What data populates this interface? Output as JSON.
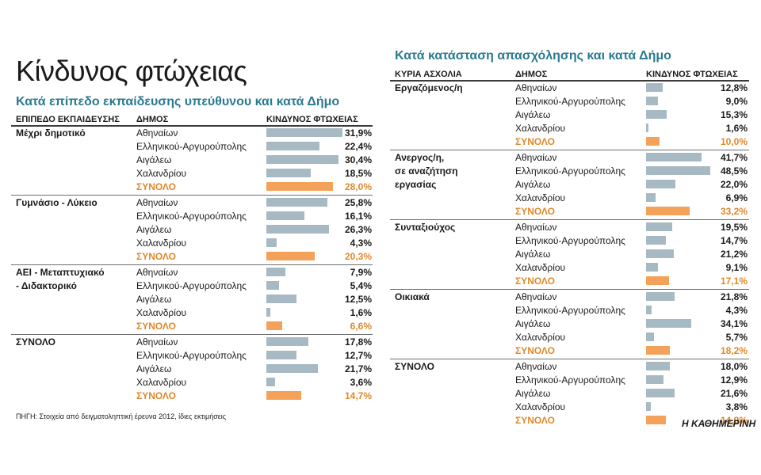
{
  "page_title": "Κίνδυνος φτώχειας",
  "source": "ΠΗΓΗ: Στοιχεία από δειγματοληπτική έρευνα 2012, ίδιες εκτιμήσεις",
  "brand": "Η ΚΑΘΗΜΕΡΙΝΗ",
  "colors": {
    "bar": "#a7bac4",
    "total_bar": "#f4a25a",
    "total_text": "#e0882a",
    "subtitle": "#2a7a8f"
  },
  "chart_data": [
    {
      "type": "bar",
      "title": "Κατά επίπεδο εκπαίδευσης υπεύθυνου και κατά Δήμο",
      "headers": {
        "category": "ΕΠΙΠΕΔΟ ΕΚΠΑΙΔΕΥΣΗΣ",
        "municipality": "ΔΗΜΟΣ",
        "value": "ΚΙΝΔΥΝΟΣ ΦΤΩΧΕΙΑΣ"
      },
      "value_suffix": "%",
      "xlim": [
        0,
        32
      ],
      "groups": [
        {
          "category_lines": [
            "Μέχρι δημοτικό"
          ],
          "rows": [
            {
              "label": "Αθηναίων",
              "value": "31,9",
              "total": false
            },
            {
              "label": "Ελληνικού-Αργυρούπολης",
              "value": "22,4",
              "total": false
            },
            {
              "label": "Αιγάλεω",
              "value": "30,4",
              "total": false
            },
            {
              "label": "Χαλανδρίου",
              "value": "18,5",
              "total": false
            },
            {
              "label": "ΣΥΝΟΛΟ",
              "value": "28,0",
              "total": true
            }
          ]
        },
        {
          "category_lines": [
            "Γυμνάσιο - Λύκειο"
          ],
          "rows": [
            {
              "label": "Αθηναίων",
              "value": "25,8",
              "total": false
            },
            {
              "label": "Ελληνικού-Αργυρούπολης",
              "value": "16,1",
              "total": false
            },
            {
              "label": "Αιγάλεω",
              "value": "26,3",
              "total": false
            },
            {
              "label": "Χαλανδρίου",
              "value": "4,3",
              "total": false
            },
            {
              "label": "ΣΥΝΟΛΟ",
              "value": "20,3",
              "total": true
            }
          ]
        },
        {
          "category_lines": [
            "ΑΕΙ - Μεταπτυχιακό",
            "- Διδακτορικό"
          ],
          "rows": [
            {
              "label": "Αθηναίων",
              "value": "7,9",
              "total": false
            },
            {
              "label": "Ελληνικού-Αργυρούπολης",
              "value": "5,4",
              "total": false
            },
            {
              "label": "Αιγάλεω",
              "value": "12,5",
              "total": false
            },
            {
              "label": "Χαλανδρίου",
              "value": "1,6",
              "total": false
            },
            {
              "label": "ΣΥΝΟΛΟ",
              "value": "6,6",
              "total": true
            }
          ]
        },
        {
          "category_lines": [
            "ΣΥΝΟΛΟ"
          ],
          "rows": [
            {
              "label": "Αθηναίων",
              "value": "17,8",
              "total": false
            },
            {
              "label": "Ελληνικού-Αργυρούπολης",
              "value": "12,7",
              "total": false
            },
            {
              "label": "Αιγάλεω",
              "value": "21,7",
              "total": false
            },
            {
              "label": "Χαλανδρίου",
              "value": "3,6",
              "total": false
            },
            {
              "label": "ΣΥΝΟΛΟ",
              "value": "14,7",
              "total": true
            }
          ]
        }
      ]
    },
    {
      "type": "bar",
      "title": "Κατά κατάσταση απασχόλησης και κατά Δήμο",
      "headers": {
        "category": "ΚΥΡΙΑ ΑΣΧΟΛΙΑ",
        "municipality": "ΔΗΜΟΣ",
        "value": "ΚΙΝΔΥΝΟΣ ΦΤΩΧΕΙΑΣ"
      },
      "value_suffix": "%",
      "xlim": [
        0,
        48.5
      ],
      "groups": [
        {
          "category_lines": [
            "Εργαζόμενος/η"
          ],
          "rows": [
            {
              "label": "Αθηναίων",
              "value": "12,8",
              "total": false
            },
            {
              "label": "Ελληνικού-Αργυρούπολης",
              "value": "9,0",
              "total": false
            },
            {
              "label": "Αιγάλεω",
              "value": "15,3",
              "total": false
            },
            {
              "label": "Χαλανδρίου",
              "value": "1,6",
              "total": false
            },
            {
              "label": "ΣΥΝΟΛΟ",
              "value": "10,0",
              "total": true
            }
          ]
        },
        {
          "category_lines": [
            "Ανεργος/η,",
            "σε αναζήτηση",
            "εργασίας"
          ],
          "rows": [
            {
              "label": "Αθηναίων",
              "value": "41,7",
              "total": false
            },
            {
              "label": "Ελληνικού-Αργυρούπολης",
              "value": "48,5",
              "total": false
            },
            {
              "label": "Αιγάλεω",
              "value": "22,0",
              "total": false
            },
            {
              "label": "Χαλανδρίου",
              "value": "6,9",
              "total": false
            },
            {
              "label": "ΣΥΝΟΛΟ",
              "value": "33,2",
              "total": true
            }
          ]
        },
        {
          "category_lines": [
            "Συνταξιούχος"
          ],
          "rows": [
            {
              "label": "Αθηναίων",
              "value": "19,5",
              "total": false
            },
            {
              "label": "Ελληνικού-Αργυρούπολης",
              "value": "14,7",
              "total": false
            },
            {
              "label": "Αιγάλεω",
              "value": "21,2",
              "total": false
            },
            {
              "label": "Χαλανδρίου",
              "value": "9,1",
              "total": false
            },
            {
              "label": "ΣΥΝΟΛΟ",
              "value": "17,1",
              "total": true
            }
          ]
        },
        {
          "category_lines": [
            "Οικιακά"
          ],
          "rows": [
            {
              "label": "Αθηναίων",
              "value": "21,8",
              "total": false
            },
            {
              "label": "Ελληνικού-Αργυρούπολης",
              "value": "4,3",
              "total": false
            },
            {
              "label": "Αιγάλεω",
              "value": "34,1",
              "total": false
            },
            {
              "label": "Χαλανδρίου",
              "value": "5,7",
              "total": false
            },
            {
              "label": "ΣΥΝΟΛΟ",
              "value": "18,2",
              "total": true
            }
          ]
        },
        {
          "category_lines": [
            "ΣΥΝΟΛΟ"
          ],
          "rows": [
            {
              "label": "Αθηναίων",
              "value": "18,0",
              "total": false
            },
            {
              "label": "Ελληνικού-Αργυρούπολης",
              "value": "12,9",
              "total": false
            },
            {
              "label": "Αιγάλεω",
              "value": "21,6",
              "total": false
            },
            {
              "label": "Χαλανδρίου",
              "value": "3,8",
              "total": false
            },
            {
              "label": "ΣΥΝΟΛΟ",
              "value": "14,9",
              "total": true
            }
          ]
        }
      ]
    }
  ]
}
